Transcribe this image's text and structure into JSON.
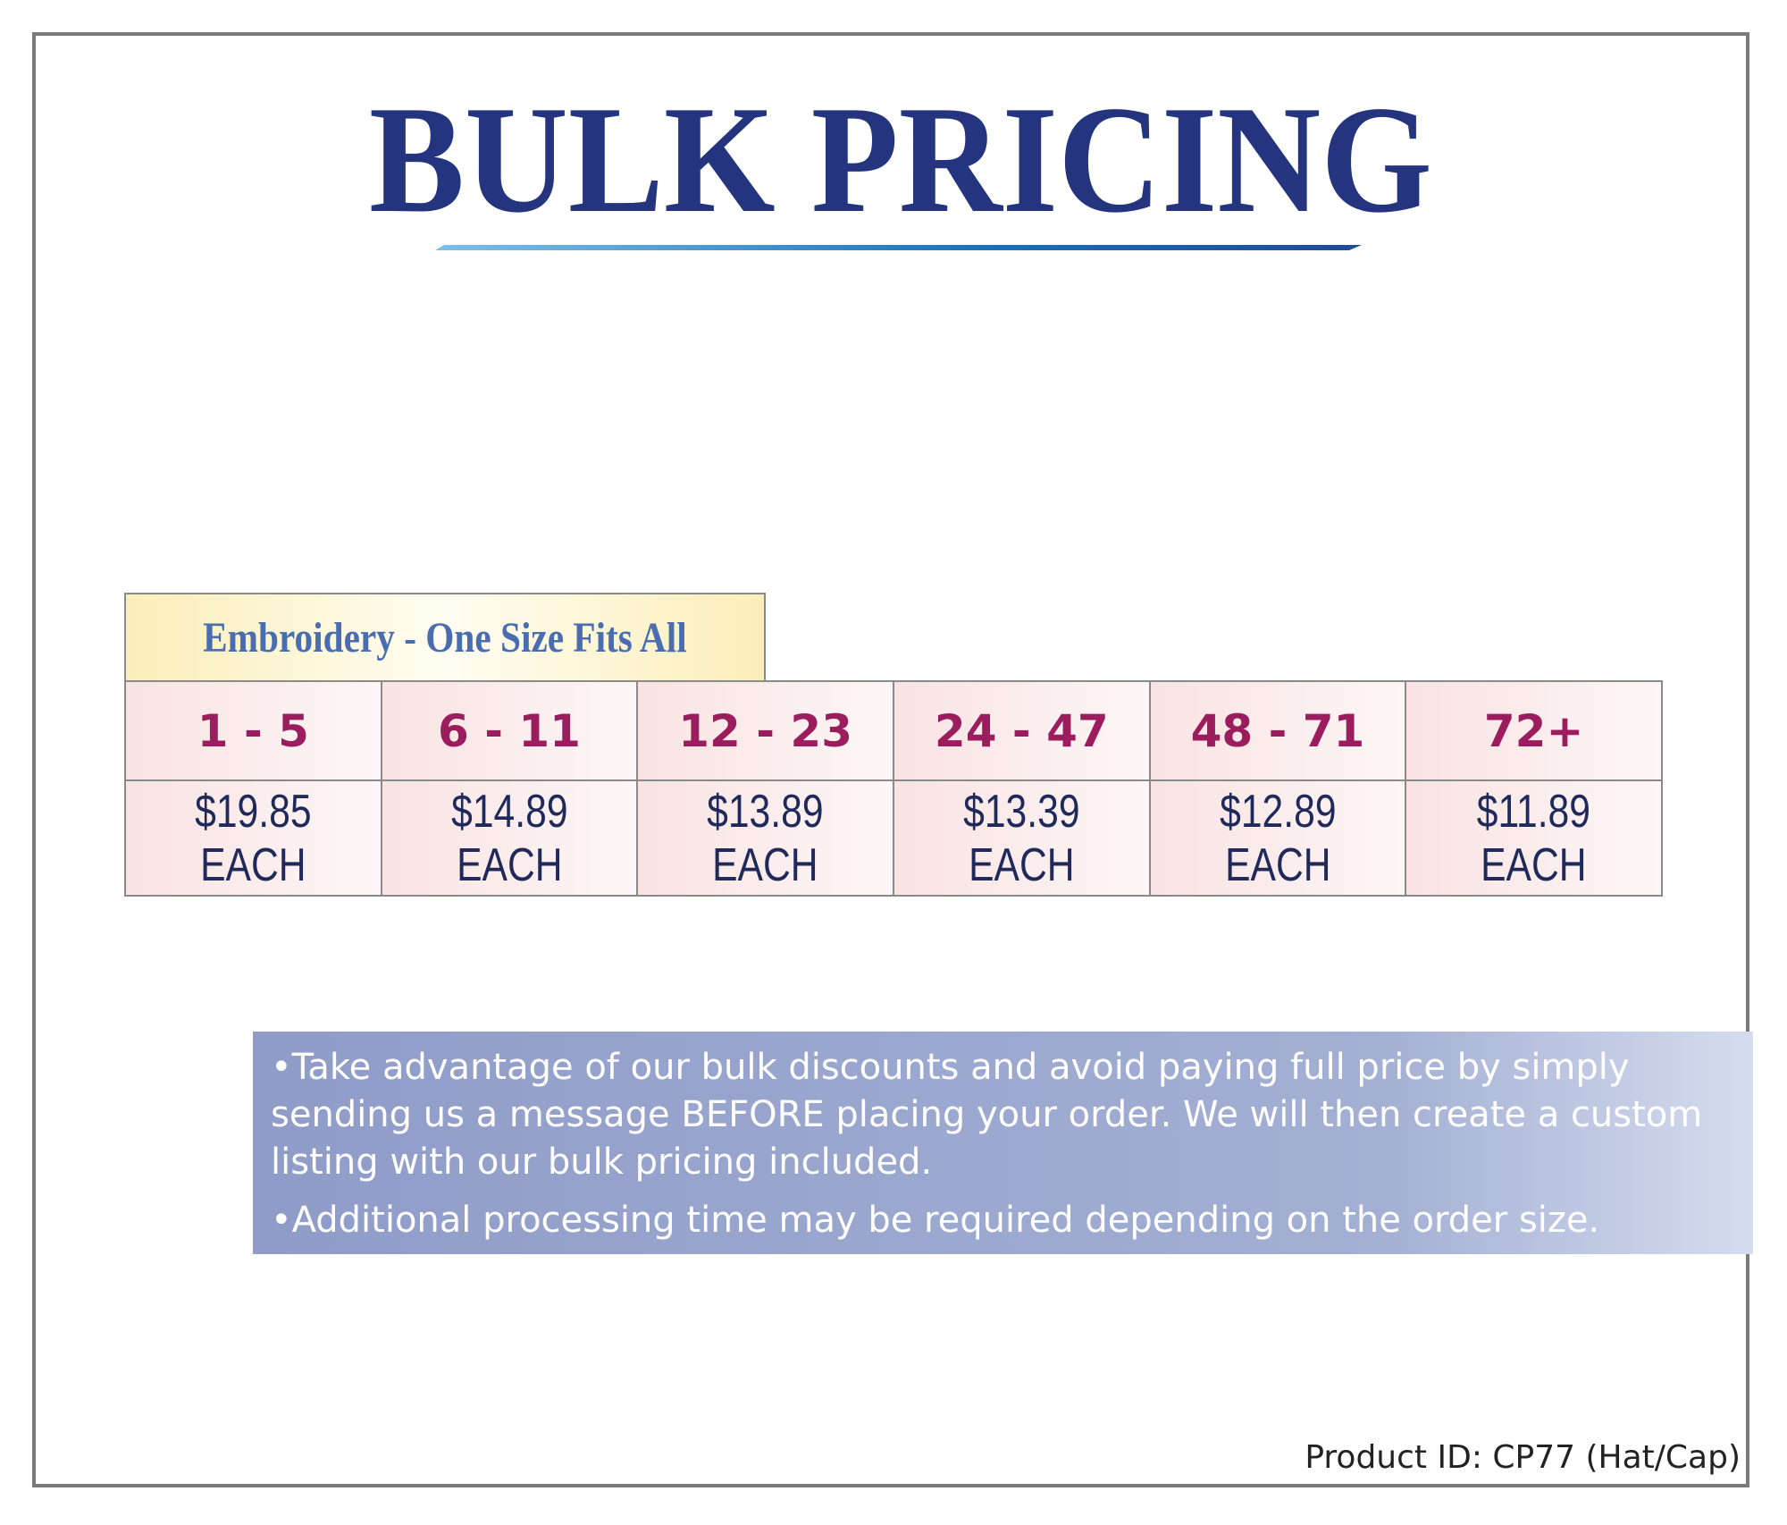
{
  "title": "BULK PRICING",
  "table": {
    "header": "Embroidery - One Size Fits All",
    "ranges": [
      "1 - 5",
      "6 - 11",
      "12 - 23",
      "24 - 47",
      "48 - 71",
      "72+"
    ],
    "prices": [
      "$19.85 EACH",
      "$14.89 EACH",
      "$13.89 EACH",
      "$13.39 EACH",
      "$12.89 EACH",
      "$11.89 EACH"
    ]
  },
  "notes": [
    "•Take advantage of our bulk discounts and avoid paying full price by simply sending us a message BEFORE placing your order. We will then create a custom listing with our bulk pricing included.",
    "•Additional processing time may be required depending on the order size."
  ],
  "product_id": "Product ID: CP77 (Hat/Cap)"
}
